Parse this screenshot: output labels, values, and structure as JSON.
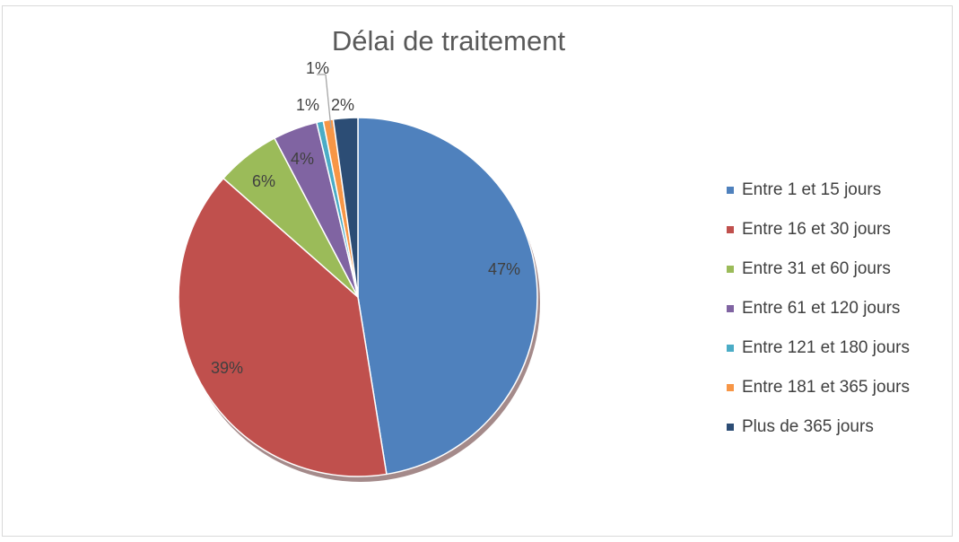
{
  "chart": {
    "title": "Délai de traitement"
  },
  "chart_data": {
    "type": "pie",
    "title": "Délai de traitement",
    "categories": [
      "Entre 1 et 15 jours",
      "Entre 16 et 30 jours",
      "Entre 31 et 60 jours",
      "Entre 61 et 120 jours",
      "Entre 121 et 180 jours",
      "Entre 181 et 365 jours",
      "Plus de 365 jours"
    ],
    "values": [
      47,
      39,
      6,
      4,
      1,
      1,
      2
    ],
    "labels": [
      "47%",
      "39%",
      "6%",
      "4%",
      "1%",
      "1%",
      "2%"
    ],
    "colors": [
      "#4f81bd",
      "#c0504d",
      "#9bbb59",
      "#8064a2",
      "#4bacc6",
      "#f79646",
      "#2c4d75"
    ],
    "legend_position": "right"
  },
  "legend": {
    "items": [
      {
        "label": "Entre 1 et 15 jours",
        "color": "#4f81bd"
      },
      {
        "label": "Entre 16 et 30 jours",
        "color": "#c0504d"
      },
      {
        "label": "Entre 31 et 60 jours",
        "color": "#9bbb59"
      },
      {
        "label": "Entre 61 et 120 jours",
        "color": "#8064a2"
      },
      {
        "label": "Entre 121 et 180 jours",
        "color": "#4bacc6"
      },
      {
        "label": "Entre 181 et 365 jours",
        "color": "#f79646"
      },
      {
        "label": "Plus de 365 jours",
        "color": "#2c4d75"
      }
    ]
  }
}
